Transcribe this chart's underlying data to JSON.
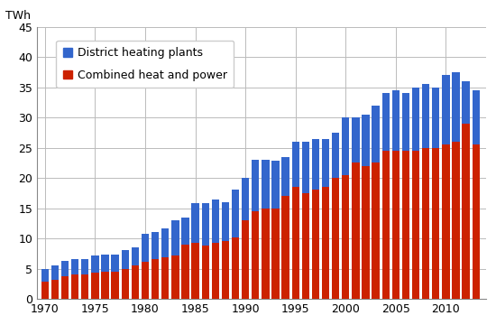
{
  "years": [
    1970,
    1971,
    1972,
    1973,
    1974,
    1975,
    1976,
    1977,
    1978,
    1979,
    1980,
    1981,
    1982,
    1983,
    1984,
    1985,
    1986,
    1987,
    1988,
    1989,
    1990,
    1991,
    1992,
    1993,
    1994,
    1995,
    1996,
    1997,
    1998,
    1999,
    2000,
    2001,
    2002,
    2003,
    2004,
    2005,
    2006,
    2007,
    2008,
    2009,
    2010,
    2011,
    2012,
    2013
  ],
  "chp": [
    2.8,
    3.2,
    3.8,
    4.0,
    4.0,
    4.3,
    4.5,
    4.5,
    5.0,
    5.5,
    6.2,
    6.5,
    6.8,
    7.2,
    9.0,
    9.3,
    8.8,
    9.2,
    9.5,
    10.2,
    13.0,
    14.5,
    15.0,
    15.0,
    17.0,
    18.5,
    17.5,
    18.0,
    18.5,
    20.0,
    20.5,
    22.5,
    22.0,
    22.5,
    24.5,
    24.5,
    24.5,
    24.5,
    25.0,
    25.0,
    25.5,
    26.0,
    29.0,
    25.5
  ],
  "dhp": [
    2.1,
    2.3,
    2.5,
    2.5,
    2.5,
    2.8,
    2.8,
    2.8,
    3.0,
    3.0,
    4.5,
    4.5,
    4.8,
    5.8,
    4.5,
    6.5,
    7.0,
    7.2,
    6.5,
    7.8,
    7.0,
    8.5,
    8.0,
    7.8,
    6.5,
    7.5,
    8.5,
    8.5,
    8.0,
    7.5,
    9.5,
    7.5,
    8.5,
    9.5,
    9.5,
    10.0,
    9.5,
    10.5,
    10.5,
    10.0,
    11.5,
    11.5,
    7.0,
    9.0
  ],
  "chp_color": "#cc2200",
  "dhp_color": "#3366cc",
  "background_color": "#ffffff",
  "grid_color": "#bbbbbb",
  "ylabel": "TWh",
  "ylim": [
    0,
    45
  ],
  "yticks": [
    0,
    5,
    10,
    15,
    20,
    25,
    30,
    35,
    40,
    45
  ],
  "xtick_labels": [
    "1970",
    "1975",
    "1980",
    "1985",
    "1990",
    "1995",
    "2000",
    "2005",
    "2010"
  ],
  "xtick_positions": [
    1970,
    1975,
    1980,
    1985,
    1990,
    1995,
    2000,
    2005,
    2010
  ],
  "legend_dhp": "District heating plants",
  "legend_chp": "Combined heat and power",
  "axis_fontsize": 9,
  "legend_fontsize": 9
}
